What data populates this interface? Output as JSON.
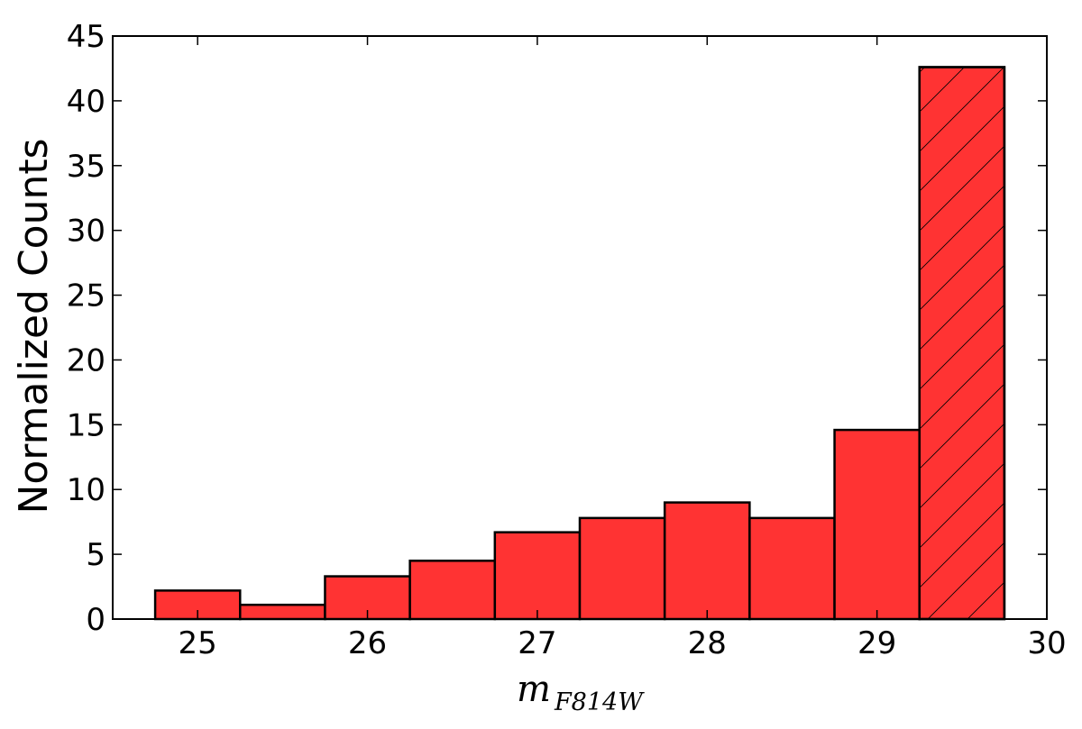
{
  "chart_data": {
    "type": "bar",
    "title": "",
    "xlabel": "m",
    "xlabel_subscript": "F814W",
    "ylabel": "Normalized Counts",
    "xlim": [
      24.5,
      30
    ],
    "ylim": [
      0,
      45
    ],
    "xticks": [
      25,
      26,
      27,
      28,
      29,
      30
    ],
    "yticks": [
      0,
      5,
      10,
      15,
      20,
      25,
      30,
      35,
      40,
      45
    ],
    "grid": false,
    "legend": "none",
    "bin_width": 0.5,
    "bins": [
      {
        "x_start": 24.75,
        "x_end": 25.25,
        "value": 2.2,
        "hatched": false
      },
      {
        "x_start": 25.25,
        "x_end": 25.75,
        "value": 1.1,
        "hatched": false
      },
      {
        "x_start": 25.75,
        "x_end": 26.25,
        "value": 3.3,
        "hatched": false
      },
      {
        "x_start": 26.25,
        "x_end": 26.75,
        "value": 4.5,
        "hatched": false
      },
      {
        "x_start": 26.75,
        "x_end": 27.25,
        "value": 6.7,
        "hatched": false
      },
      {
        "x_start": 27.25,
        "x_end": 27.75,
        "value": 7.8,
        "hatched": false
      },
      {
        "x_start": 27.75,
        "x_end": 28.25,
        "value": 9.0,
        "hatched": false
      },
      {
        "x_start": 28.25,
        "x_end": 28.75,
        "value": 7.8,
        "hatched": false
      },
      {
        "x_start": 28.75,
        "x_end": 29.25,
        "value": 14.6,
        "hatched": false
      },
      {
        "x_start": 29.25,
        "x_end": 29.75,
        "value": 42.6,
        "hatched": true
      }
    ],
    "colors": {
      "bar_fill": "#ff3333",
      "bar_edge": "#000000",
      "axis": "#000000",
      "hatch": "#000000"
    }
  }
}
